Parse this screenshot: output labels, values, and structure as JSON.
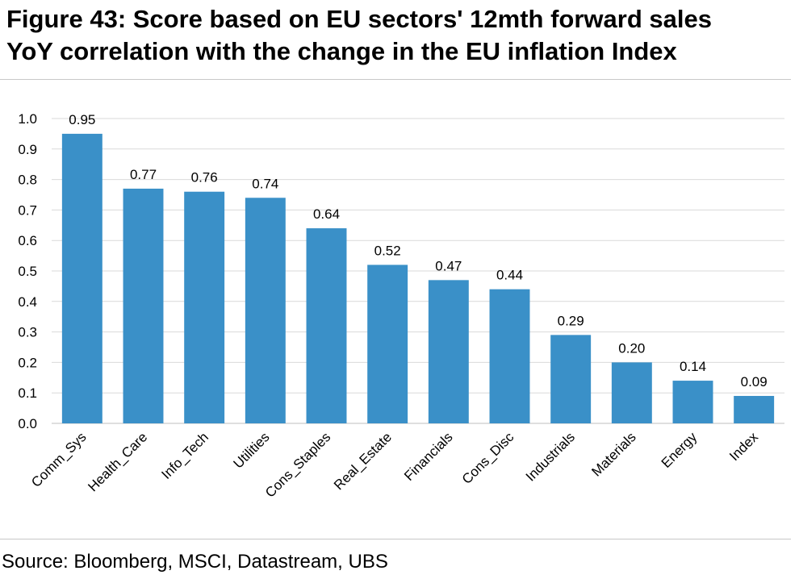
{
  "header": {
    "title_line1": "Figure 43: Score based on EU sectors' 12mth forward sales",
    "title_line2": "YoY correlation with the change in the EU inflation Index"
  },
  "footer": {
    "source": "Source: Bloomberg, MSCI, Datastream, UBS"
  },
  "chart_data": {
    "type": "bar",
    "title": "",
    "xlabel": "",
    "ylabel": "",
    "categories": [
      "Comm_Sys",
      "Health_Care",
      "Info_Tech",
      "Utilities",
      "Cons_Staples",
      "Real_Estate",
      "Financials",
      "Cons_Disc",
      "Industrials",
      "Materials",
      "Energy",
      "Index"
    ],
    "values": [
      0.95,
      0.77,
      0.76,
      0.74,
      0.64,
      0.52,
      0.47,
      0.44,
      0.29,
      0.2,
      0.14,
      0.09
    ],
    "data_labels": [
      "0.95",
      "0.77",
      "0.76",
      "0.74",
      "0.64",
      "0.52",
      "0.47",
      "0.44",
      "0.29",
      "0.20",
      "0.14",
      "0.09"
    ],
    "ylim": [
      0,
      1.0
    ],
    "yticks": [
      "0.0",
      "0.1",
      "0.2",
      "0.3",
      "0.4",
      "0.5",
      "0.6",
      "0.7",
      "0.8",
      "0.9",
      "1.0"
    ],
    "grid": true,
    "legend": "none",
    "bar_color": "#3a90c8"
  }
}
